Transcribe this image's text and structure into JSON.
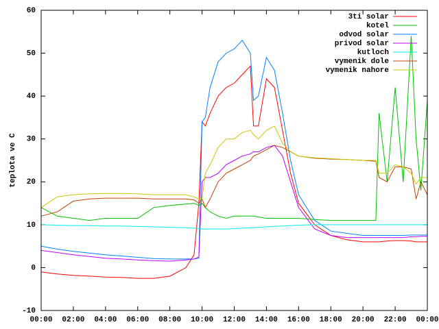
{
  "chart_data": {
    "type": "line",
    "y_label": "teplota ve C",
    "x": [
      0,
      1,
      2,
      3,
      4,
      5,
      6,
      7,
      8,
      9,
      9.5,
      9.8,
      10,
      10.2,
      10.5,
      11,
      11.5,
      12,
      12.5,
      13,
      13.2,
      13.5,
      14,
      14.5,
      15,
      15.5,
      16,
      17,
      18,
      19,
      20,
      20.8,
      21,
      21.5,
      22,
      22.5,
      23,
      23.3,
      23.6,
      24
    ],
    "xlim": [
      0,
      24
    ],
    "xticks": [
      {
        "value": 0,
        "label": "00:00"
      },
      {
        "value": 2,
        "label": "02:00"
      },
      {
        "value": 4,
        "label": "04:00"
      },
      {
        "value": 6,
        "label": "06:00"
      },
      {
        "value": 8,
        "label": "08:00"
      },
      {
        "value": 10,
        "label": "10:00"
      },
      {
        "value": 12,
        "label": "12:00"
      },
      {
        "value": 14,
        "label": "14:00"
      },
      {
        "value": 16,
        "label": "16:00"
      },
      {
        "value": 18,
        "label": "18:00"
      },
      {
        "value": 20,
        "label": "20:00"
      },
      {
        "value": 22,
        "label": "22:00"
      },
      {
        "value": 24,
        "label": "00:00"
      }
    ],
    "ylim": [
      -10,
      60
    ],
    "yticks": [
      -10,
      0,
      10,
      20,
      30,
      40,
      50,
      60
    ],
    "legend": "upper right",
    "series": [
      {
        "name": "3ti solar",
        "color": "#ff0000",
        "values": [
          -1,
          -1.5,
          -1.8,
          -2,
          -2.2,
          -2.3,
          -2.5,
          -2.5,
          -2,
          0,
          3,
          15,
          34,
          33,
          36,
          40,
          42,
          43,
          45,
          47,
          33,
          33,
          44,
          42,
          32,
          22,
          15,
          10,
          7.5,
          6.5,
          6,
          6,
          6,
          6.2,
          6.3,
          6.3,
          6.2,
          6,
          6,
          6
        ]
      },
      {
        "name": "kotel",
        "color": "#00c000",
        "values": [
          14,
          12,
          11.5,
          11,
          11.5,
          11.5,
          11.5,
          14,
          14.5,
          14.8,
          15,
          14.5,
          15,
          14,
          13,
          12,
          11.5,
          12,
          12,
          12,
          12,
          11.8,
          11.5,
          11.5,
          11.5,
          11.5,
          11.5,
          11.2,
          11,
          11,
          11,
          11,
          36,
          20,
          42,
          20,
          54,
          30,
          18,
          39
        ]
      },
      {
        "name": "odvod solar",
        "color": "#0080ff",
        "values": [
          5,
          4.3,
          3.8,
          3.4,
          3,
          2.7,
          2.4,
          2.1,
          2,
          2,
          2,
          2.2,
          34,
          35,
          42,
          48,
          50,
          51,
          53,
          50,
          39,
          40,
          49,
          46,
          36,
          25,
          17,
          11,
          8.5,
          8,
          7.5,
          7.5,
          7.5,
          7.5,
          7.5,
          7.5,
          7.6,
          7.6,
          7.6,
          7.6
        ]
      },
      {
        "name": "privod solar",
        "color": "#c000ff",
        "values": [
          4,
          3.5,
          3,
          2.6,
          2.2,
          2,
          1.8,
          1.6,
          1.5,
          1.8,
          2,
          2.5,
          20,
          21,
          21,
          22,
          24,
          25,
          26,
          26.5,
          27,
          27,
          28,
          28.5,
          26,
          20,
          14,
          9,
          7.5,
          7,
          7,
          7,
          7,
          7,
          7,
          7,
          7.2,
          7.2,
          7.3,
          7.3
        ]
      },
      {
        "name": "kutloch",
        "color": "#00eeee",
        "values": [
          10,
          9.9,
          9.8,
          9.8,
          9.7,
          9.7,
          9.6,
          9.5,
          9.4,
          9.3,
          9.2,
          9.1,
          9,
          9,
          9,
          9,
          9,
          9.1,
          9.2,
          9.3,
          9.3,
          9.4,
          9.5,
          9.6,
          9.7,
          9.8,
          9.9,
          10,
          10,
          10,
          10,
          10,
          10,
          10,
          10,
          10,
          10,
          10,
          10,
          10
        ]
      },
      {
        "name": "vymenik dole",
        "color": "#c04000",
        "values": [
          12,
          13,
          15.5,
          16,
          16.2,
          16.2,
          16.2,
          16,
          16,
          16,
          15.8,
          15,
          16,
          14,
          16,
          20,
          22,
          23,
          24,
          25,
          26,
          26.5,
          27.5,
          28.5,
          28,
          27,
          26,
          25.5,
          25.3,
          25.2,
          25,
          24.8,
          21,
          20,
          23.5,
          23.5,
          23,
          16,
          20,
          17
        ]
      },
      {
        "name": "vymenik nahore",
        "color": "#c8c800",
        "values": [
          14,
          16.5,
          17,
          17.2,
          17.3,
          17.3,
          17.2,
          17,
          17,
          17,
          16.5,
          16,
          16,
          22,
          24,
          28,
          30,
          30,
          31.5,
          32,
          31,
          30,
          32,
          33,
          29,
          27,
          26,
          25.6,
          25.4,
          25.2,
          25,
          25,
          22,
          22,
          24,
          23.5,
          22,
          19.5,
          21,
          21
        ]
      }
    ]
  }
}
